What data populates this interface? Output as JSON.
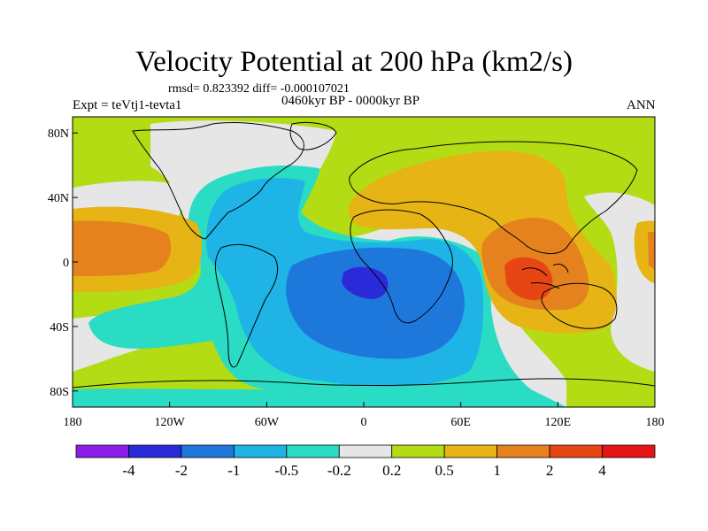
{
  "title": "Velocity Potential at 200 hPa (km2/s)",
  "stats": "rmsd= 0.823392 diff= -0.000107021",
  "experiment": "Expt = teVtj1-tevta1",
  "period": "0460kyr BP - 0000kyr BP",
  "season": "ANN",
  "axes": {
    "x_ticks": [
      {
        "label": "180",
        "lon": -180
      },
      {
        "label": "120W",
        "lon": -120
      },
      {
        "label": "60W",
        "lon": -60
      },
      {
        "label": "0",
        "lon": 0
      },
      {
        "label": "60E",
        "lon": 60
      },
      {
        "label": "120E",
        "lon": 120
      },
      {
        "label": "180",
        "lon": 180
      }
    ],
    "y_ticks": [
      {
        "label": "80N",
        "lat": 80
      },
      {
        "label": "40N",
        "lat": 40
      },
      {
        "label": "0",
        "lat": 0
      },
      {
        "label": "40S",
        "lat": -40
      },
      {
        "label": "80S",
        "lat": -80
      }
    ]
  },
  "colorbar": {
    "colors": [
      "#8b1ee6",
      "#2a2ad8",
      "#1e78dc",
      "#1eb4e6",
      "#2adcc4",
      "#e6e6e6",
      "#b4dc14",
      "#e6b414",
      "#e6821e",
      "#e64614",
      "#e61414"
    ],
    "labels": [
      "-4",
      "-2",
      "-1",
      "-0.5",
      "-0.2",
      "0.2",
      "0.5",
      "1",
      "2",
      "4"
    ]
  },
  "colors": {
    "background": "#b4dc14"
  }
}
